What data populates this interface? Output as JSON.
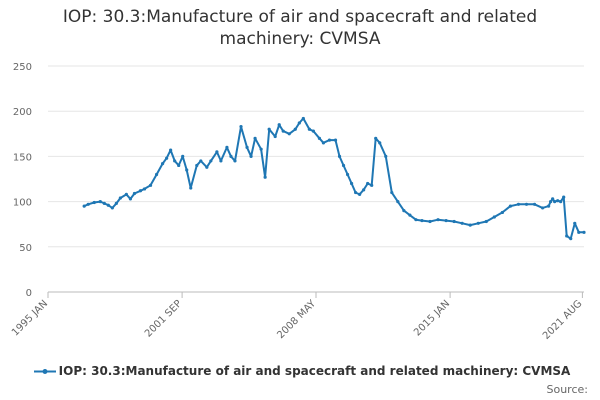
{
  "chart_data": {
    "type": "line",
    "title": "IOP: 30.3:Manufacture of air and spacecraft and related machinery: CVMSA",
    "xlabel": "",
    "ylabel": "",
    "ylim": [
      0,
      250
    ],
    "yticks": [
      0,
      50,
      100,
      150,
      200,
      250
    ],
    "xlim": [
      1995.0,
      2021.66
    ],
    "xticks": [
      {
        "label": "1995 JAN",
        "value": 1995.0
      },
      {
        "label": "2001 SEP",
        "value": 2001.67
      },
      {
        "label": "2008 MAY",
        "value": 2008.33
      },
      {
        "label": "2015 JAN",
        "value": 2015.0
      },
      {
        "label": "2021 AUG",
        "value": 2021.58
      }
    ],
    "grid": "horizontal",
    "legend_position": "bottom",
    "color": "#1f77b4",
    "series": [
      {
        "name": "IOP: 30.3:Manufacture of air and spacecraft and related machinery: CVMSA",
        "x": [
          1996.8,
          1997.0,
          1997.3,
          1997.6,
          1997.8,
          1998.0,
          1998.2,
          1998.4,
          1998.6,
          1998.9,
          1999.1,
          1999.3,
          1999.6,
          1999.8,
          2000.1,
          2000.4,
          2000.7,
          2000.9,
          2001.1,
          2001.3,
          2001.5,
          2001.7,
          2001.9,
          2002.1,
          2002.4,
          2002.6,
          2002.9,
          2003.1,
          2003.4,
          2003.6,
          2003.9,
          2004.1,
          2004.3,
          2004.6,
          2004.9,
          2005.1,
          2005.3,
          2005.6,
          2005.8,
          2006.0,
          2006.3,
          2006.5,
          2006.7,
          2007.0,
          2007.3,
          2007.5,
          2007.7,
          2008.0,
          2008.2,
          2008.5,
          2008.7,
          2009.0,
          2009.3,
          2009.5,
          2009.7,
          2009.9,
          2010.1,
          2010.3,
          2010.5,
          2010.7,
          2010.9,
          2011.1,
          2011.3,
          2011.5,
          2011.8,
          2012.1,
          2012.4,
          2012.7,
          2013.0,
          2013.3,
          2013.6,
          2014.0,
          2014.4,
          2014.8,
          2015.2,
          2015.6,
          2016.0,
          2016.4,
          2016.8,
          2017.2,
          2017.6,
          2018.0,
          2018.4,
          2018.8,
          2019.2,
          2019.6,
          2019.9,
          2020.0,
          2020.1,
          2020.2,
          2020.35,
          2020.5,
          2020.65,
          2020.8,
          2021.0,
          2021.2,
          2021.4,
          2021.66
        ],
        "y": [
          95,
          97,
          99,
          100,
          98,
          96,
          93,
          98,
          104,
          108,
          103,
          109,
          112,
          114,
          118,
          130,
          142,
          148,
          157,
          145,
          140,
          150,
          135,
          115,
          140,
          145,
          138,
          145,
          155,
          145,
          160,
          150,
          145,
          183,
          160,
          150,
          170,
          158,
          127,
          180,
          172,
          185,
          178,
          175,
          180,
          187,
          192,
          180,
          178,
          170,
          165,
          168,
          168,
          150,
          140,
          130,
          120,
          110,
          108,
          113,
          120,
          118,
          170,
          165,
          150,
          110,
          100,
          90,
          85,
          80,
          79,
          78,
          80,
          79,
          78,
          76,
          74,
          76,
          78,
          83,
          88,
          95,
          97,
          97,
          97,
          93,
          95,
          100,
          103,
          100,
          101,
          100,
          105,
          62,
          59,
          76,
          66,
          66
        ]
      }
    ],
    "source_label": "Source:"
  }
}
